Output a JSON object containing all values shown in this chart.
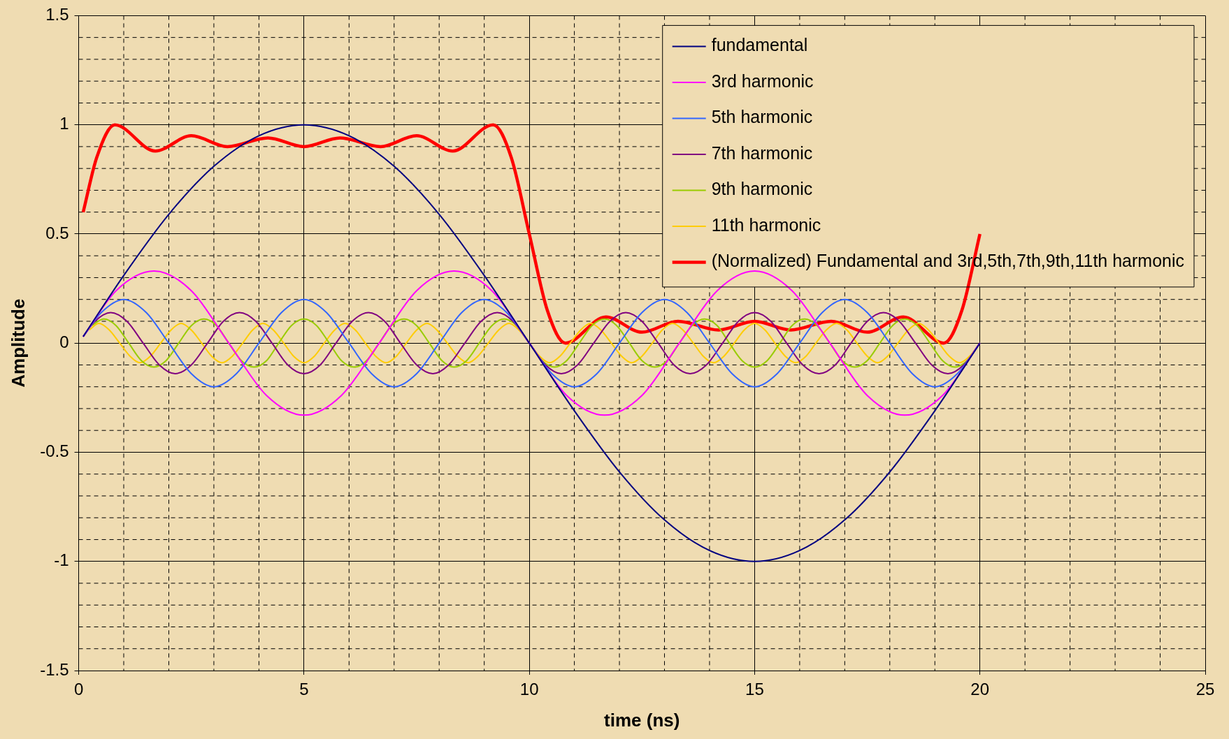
{
  "chart_data": {
    "type": "line",
    "xlabel": "time (ns)",
    "ylabel": "Amplitude",
    "xlim": [
      0,
      25
    ],
    "ylim": [
      -1.5,
      1.5
    ],
    "xticks": [
      0,
      {
        "value": 1,
        "label": null
      },
      {
        "value": 2,
        "label": null
      },
      {
        "value": 3,
        "label": null
      },
      {
        "value": 4,
        "label": null
      },
      5,
      {
        "value": 6,
        "label": null
      },
      {
        "value": 7,
        "label": null
      },
      {
        "value": 8,
        "label": null
      },
      {
        "value": 9,
        "label": null
      },
      10,
      {
        "value": 11,
        "label": null
      },
      {
        "value": 12,
        "label": null
      },
      {
        "value": 13,
        "label": null
      },
      {
        "value": 14,
        "label": null
      },
      15,
      {
        "value": 16,
        "label": null
      },
      {
        "value": 17,
        "label": null
      },
      {
        "value": 18,
        "label": null
      },
      {
        "value": 19,
        "label": null
      },
      20,
      {
        "value": 21,
        "label": null
      },
      {
        "value": 22,
        "label": null
      },
      {
        "value": 23,
        "label": null
      },
      {
        "value": 24,
        "label": null
      },
      25
    ],
    "yticks": [
      -1.5,
      {
        "value": -1.4,
        "label": null
      },
      {
        "value": -1.3,
        "label": null
      },
      {
        "value": -1.2,
        "label": null
      },
      {
        "value": -1.1,
        "label": null
      },
      -1,
      {
        "value": -0.9,
        "label": null
      },
      {
        "value": -0.8,
        "label": null
      },
      {
        "value": -0.7,
        "label": null
      },
      {
        "value": -0.6,
        "label": null
      },
      -0.5,
      {
        "value": -0.4,
        "label": null
      },
      {
        "value": -0.3,
        "label": null
      },
      {
        "value": -0.2,
        "label": null
      },
      {
        "value": -0.1,
        "label": null
      },
      0,
      {
        "value": 0.1,
        "label": null
      },
      {
        "value": 0.2,
        "label": null
      },
      {
        "value": 0.3,
        "label": null
      },
      {
        "value": 0.4,
        "label": null
      },
      0.5,
      {
        "value": 0.6,
        "label": null
      },
      {
        "value": 0.7,
        "label": null
      },
      {
        "value": 0.8,
        "label": null
      },
      {
        "value": 0.9,
        "label": null
      },
      1,
      {
        "value": 1.1,
        "label": null
      },
      {
        "value": 1.2,
        "label": null
      },
      {
        "value": 1.3,
        "label": null
      },
      {
        "value": 1.4,
        "label": null
      },
      1.5
    ],
    "grid": true,
    "legend": "top right",
    "marker": "none",
    "series": [
      {
        "name": "fundamental",
        "color": "#000080",
        "x": [
          0.1,
          1,
          2,
          3,
          4,
          5,
          6,
          7,
          8,
          9,
          10,
          11,
          12,
          13,
          14,
          15,
          16,
          17,
          18,
          19,
          20
        ],
        "values": [
          0.03,
          0.31,
          0.59,
          0.81,
          0.95,
          1,
          0.95,
          0.81,
          0.59,
          0.31,
          0,
          -0.31,
          -0.59,
          -0.81,
          -0.95,
          -1,
          -0.95,
          -0.81,
          -0.59,
          -0.31,
          0
        ]
      },
      {
        "name": "3rd harmonic",
        "color": "#ff00ff",
        "x": [
          0.1,
          0.83,
          1.67,
          2.5,
          3.33,
          4.17,
          5,
          5.83,
          6.67,
          7.5,
          8.33,
          9.17,
          10,
          10.83,
          11.67,
          12.5,
          13.33,
          14.17,
          15,
          15.83,
          16.67,
          17.5,
          18.33,
          19.17,
          20
        ],
        "values": [
          0.03,
          0.24,
          0.33,
          0.24,
          0,
          -0.24,
          -0.33,
          -0.24,
          0,
          0.24,
          0.33,
          0.24,
          0,
          -0.24,
          -0.33,
          -0.24,
          0,
          0.24,
          0.33,
          0.24,
          0,
          -0.24,
          -0.33,
          -0.24,
          0
        ]
      },
      {
        "name": "5th harmonic",
        "color": "#3366ff",
        "x": [
          0.1,
          0.5,
          1,
          1.5,
          2,
          2.5,
          3,
          3.5,
          4,
          4.5,
          5,
          5.5,
          6,
          6.5,
          7,
          7.5,
          8,
          8.5,
          9,
          9.5,
          10,
          10.5,
          11,
          11.5,
          12,
          12.5,
          13,
          13.5,
          14,
          14.5,
          15,
          15.5,
          16,
          16.5,
          17,
          17.5,
          18,
          18.5,
          19,
          19.5,
          20
        ],
        "values": [
          0.03,
          0.14,
          0.2,
          0.14,
          0,
          -0.14,
          -0.2,
          -0.14,
          0,
          0.14,
          0.2,
          0.14,
          0,
          -0.14,
          -0.2,
          -0.14,
          0,
          0.14,
          0.2,
          0.14,
          0,
          -0.14,
          -0.2,
          -0.14,
          0,
          0.14,
          0.2,
          0.14,
          0,
          -0.14,
          -0.2,
          -0.14,
          0,
          0.14,
          0.2,
          0.14,
          0,
          -0.14,
          -0.2,
          -0.14,
          0
        ]
      },
      {
        "name": "7th harmonic",
        "color": "#800080",
        "x": [
          0.1,
          0.36,
          0.71,
          1.07,
          1.43,
          1.79,
          2.14,
          2.5,
          2.86,
          3.21,
          3.57,
          3.93,
          4.29,
          4.64,
          5,
          5.36,
          5.71,
          6.07,
          6.43,
          6.79,
          7.14,
          7.5,
          7.86,
          8.21,
          8.57,
          8.93,
          9.29,
          9.64,
          10,
          10.36,
          10.71,
          11.07,
          11.43,
          11.79,
          12.14,
          12.5,
          12.86,
          13.21,
          13.57,
          13.93,
          14.29,
          14.64,
          15,
          15.36,
          15.71,
          16.07,
          16.43,
          16.79,
          17.14,
          17.5,
          17.86,
          18.21,
          18.57,
          18.93,
          19.29,
          19.64,
          20
        ],
        "values": [
          0.03,
          0.1,
          0.14,
          0.1,
          0,
          -0.1,
          -0.14,
          -0.1,
          0,
          0.1,
          0.14,
          0.1,
          0,
          -0.1,
          -0.14,
          -0.1,
          0,
          0.1,
          0.14,
          0.1,
          0,
          -0.1,
          -0.14,
          -0.1,
          0,
          0.1,
          0.14,
          0.1,
          0,
          -0.1,
          -0.14,
          -0.1,
          0,
          0.1,
          0.14,
          0.1,
          0,
          -0.1,
          -0.14,
          -0.1,
          0,
          0.1,
          0.14,
          0.1,
          0,
          -0.1,
          -0.14,
          -0.1,
          0,
          0.1,
          0.14,
          0.1,
          0,
          -0.1,
          -0.14,
          -0.1,
          0
        ]
      },
      {
        "name": "9th harmonic",
        "color": "#99cc00",
        "x": [
          0.28,
          0.56,
          0.83,
          1.11,
          1.39,
          1.67,
          1.94,
          2.22,
          2.5,
          2.78,
          3.06,
          3.33,
          3.61,
          3.89,
          4.17,
          4.44,
          4.72,
          5,
          5.28,
          5.56,
          5.83,
          6.11,
          6.39,
          6.67,
          6.94,
          7.22,
          7.5,
          7.78,
          8.06,
          8.33,
          8.61,
          8.89,
          9.17,
          9.44,
          9.72,
          10,
          10.28,
          10.56,
          10.83,
          11.11,
          11.39,
          11.67,
          11.94,
          12.22,
          12.5,
          12.78,
          13.06,
          13.33,
          13.61,
          13.89,
          14.17,
          14.44,
          14.72,
          15,
          15.28,
          15.56,
          15.83,
          16.11,
          16.39,
          16.67,
          16.94,
          17.22,
          17.5,
          17.78,
          18.06,
          18.33,
          18.61,
          18.89,
          19.17,
          19.44,
          19.72,
          20
        ],
        "values": [
          0.08,
          0.11,
          0.08,
          0,
          -0.08,
          -0.11,
          -0.08,
          0,
          0.08,
          0.11,
          0.08,
          0,
          -0.08,
          -0.11,
          -0.08,
          0,
          0.08,
          0.11,
          0.08,
          0,
          -0.08,
          -0.11,
          -0.08,
          0,
          0.08,
          0.11,
          0.08,
          0,
          -0.08,
          -0.11,
          -0.08,
          0,
          0.08,
          0.11,
          0.08,
          0,
          -0.08,
          -0.11,
          -0.08,
          0,
          0.08,
          0.11,
          0.08,
          0,
          -0.08,
          -0.11,
          -0.08,
          0,
          0.08,
          0.11,
          0.08,
          0,
          -0.08,
          -0.11,
          -0.08,
          0,
          0.08,
          0.11,
          0.08,
          0,
          -0.08,
          -0.11,
          -0.08,
          0,
          0.08,
          0.11,
          0.08,
          0,
          -0.08,
          -0.11,
          -0.08,
          0
        ]
      },
      {
        "name": "11th harmonic",
        "color": "#ffcc00",
        "x": [
          0.23,
          0.45,
          0.68,
          0.91,
          1.14,
          1.36,
          1.59,
          1.82,
          2.05,
          2.27,
          2.5,
          2.73,
          2.95,
          3.18,
          3.41,
          3.64,
          3.86,
          4.09,
          4.32,
          4.55,
          4.77,
          5,
          5.23,
          5.45,
          5.68,
          5.91,
          6.14,
          6.36,
          6.59,
          6.82,
          7.05,
          7.27,
          7.5,
          7.73,
          7.95,
          8.18,
          8.41,
          8.64,
          8.86,
          9.09,
          9.32,
          9.55,
          9.77,
          10,
          10.23,
          10.45,
          10.68,
          10.91,
          11.14,
          11.36,
          11.59,
          11.82,
          12.05,
          12.27,
          12.5,
          12.73,
          12.95,
          13.18,
          13.41,
          13.64,
          13.86,
          14.09,
          14.32,
          14.55,
          14.77,
          15,
          15.23,
          15.45,
          15.68,
          15.91,
          16.14,
          16.36,
          16.59,
          16.82,
          17.05,
          17.27,
          17.5,
          17.73,
          17.95,
          18.18,
          18.41,
          18.64,
          18.86,
          19.09,
          19.32,
          19.55,
          19.77,
          20
        ],
        "values": [
          0.06,
          0.09,
          0.06,
          0,
          -0.06,
          -0.09,
          -0.06,
          0,
          0.06,
          0.09,
          0.06,
          0,
          -0.06,
          -0.09,
          -0.06,
          0,
          0.06,
          0.09,
          0.06,
          0,
          -0.06,
          -0.09,
          -0.06,
          0,
          0.06,
          0.09,
          0.06,
          0,
          -0.06,
          -0.09,
          -0.06,
          0,
          0.06,
          0.09,
          0.06,
          0,
          -0.06,
          -0.09,
          -0.06,
          0,
          0.06,
          0.09,
          0.06,
          0,
          -0.06,
          -0.09,
          -0.06,
          0,
          0.06,
          0.09,
          0.06,
          0,
          -0.06,
          -0.09,
          -0.06,
          0,
          0.06,
          0.09,
          0.06,
          0,
          -0.06,
          -0.09,
          -0.06,
          0,
          0.06,
          0.09,
          0.06,
          0,
          -0.06,
          -0.09,
          -0.06,
          0,
          0.06,
          0.09,
          0.06,
          0,
          -0.06,
          -0.09,
          -0.06,
          0,
          0.06,
          0.09,
          0.06,
          0,
          -0.06,
          -0.09,
          -0.06,
          0
        ]
      },
      {
        "name": "(Normalized) Fundamental and 3rd,5th,7th,9th,11th harmonic",
        "color": "#ff0000",
        "x": [
          0.1,
          0.4,
          0.8,
          1.7,
          2.5,
          3.3,
          4.2,
          5,
          5.8,
          6.7,
          7.5,
          8.3,
          9.2,
          9.6,
          10,
          10.4,
          10.8,
          11.7,
          12.5,
          13.3,
          14.2,
          15,
          15.8,
          16.7,
          17.5,
          18.3,
          19.2,
          19.6,
          20
        ],
        "values": [
          0.6,
          0.85,
          1,
          0.88,
          0.95,
          0.9,
          0.94,
          0.9,
          0.94,
          0.9,
          0.95,
          0.88,
          1,
          0.85,
          0.5,
          0.15,
          0,
          0.12,
          0.05,
          0.1,
          0.06,
          0.1,
          0.06,
          0.1,
          0.05,
          0.12,
          0,
          0.15,
          0.5
        ]
      }
    ]
  }
}
